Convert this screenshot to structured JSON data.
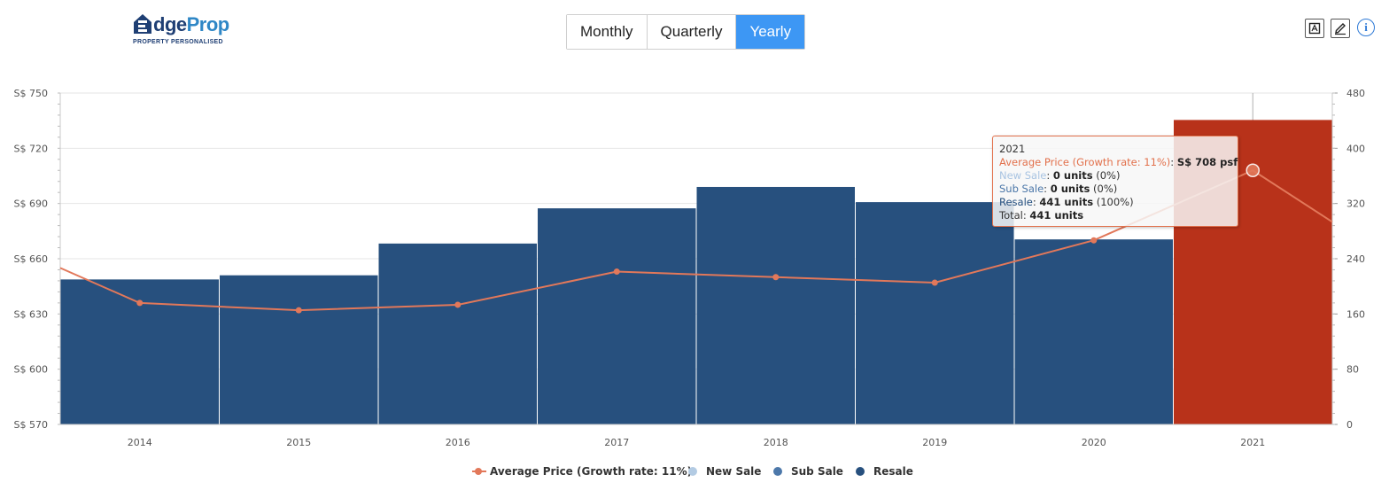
{
  "logo": {
    "brand_part1": "E",
    "brand_part2": "dge",
    "brand_part3": "Prop",
    "tagline": "PROPERTY PERSONALISED"
  },
  "tabs": [
    {
      "label": "Monthly",
      "active": false
    },
    {
      "label": "Quarterly",
      "active": false
    },
    {
      "label": "Yearly",
      "active": true
    }
  ],
  "toolbar": {
    "crop_icon": "crop-icon",
    "edit_icon": "pencil-icon",
    "info_label": "i"
  },
  "colors": {
    "resale": "#27507e",
    "highlight": "#b8321a",
    "avg_line": "#e2785a",
    "new_sale": "#b3cbe3",
    "sub_sale": "#4d78aa"
  },
  "tooltip": {
    "year": "2021",
    "avg_label": "Average Price (Growth rate: 11%)",
    "avg_value": "S$ 708 psf",
    "new_label": "New Sale",
    "new_value": "0 units",
    "new_pct": "(0%)",
    "sub_label": "Sub Sale",
    "sub_value": "0 units",
    "sub_pct": "(0%)",
    "res_label": "Resale",
    "res_value": "441 units",
    "res_pct": "(100%)",
    "total_label": "Total",
    "total_value": "441 units"
  },
  "legend": [
    {
      "label": "Average Price (Growth rate: 11%)",
      "symbol": "line",
      "color": "#e2785a"
    },
    {
      "label": "New Sale",
      "symbol": "dot",
      "color": "#b3cbe3"
    },
    {
      "label": "Sub Sale",
      "symbol": "dot",
      "color": "#4d78aa"
    },
    {
      "label": "Resale",
      "symbol": "dot",
      "color": "#27507e"
    }
  ],
  "chart_data": {
    "type": "bar",
    "categories": [
      "2014",
      "2015",
      "2016",
      "2017",
      "2018",
      "2019",
      "2020",
      "2021"
    ],
    "series": [
      {
        "name": "New Sale",
        "axis": "right",
        "values": [
          0,
          0,
          0,
          0,
          0,
          0,
          0,
          0
        ]
      },
      {
        "name": "Sub Sale",
        "axis": "right",
        "values": [
          0,
          0,
          0,
          0,
          0,
          0,
          0,
          0
        ]
      },
      {
        "name": "Resale",
        "axis": "right",
        "values": [
          210,
          216,
          262,
          313,
          344,
          322,
          268,
          441
        ]
      },
      {
        "name": "Average Price (Growth rate: 11%)",
        "axis": "left",
        "type": "line",
        "values": [
          636,
          632,
          635,
          653,
          650,
          647,
          670,
          708
        ]
      }
    ],
    "line_extend": {
      "start_value": 655,
      "end_value": 680
    },
    "highlighted_category": "2021",
    "y_left": {
      "ticks": [
        "S$ 570",
        "S$ 600",
        "S$ 630",
        "S$ 660",
        "S$ 690",
        "S$ 720",
        "S$ 750"
      ],
      "range": [
        570,
        750
      ]
    },
    "y_right": {
      "ticks": [
        "0",
        "80",
        "160",
        "240",
        "320",
        "400",
        "480"
      ],
      "range": [
        0,
        480
      ]
    },
    "grid": true,
    "legend_position": "bottom-center"
  }
}
